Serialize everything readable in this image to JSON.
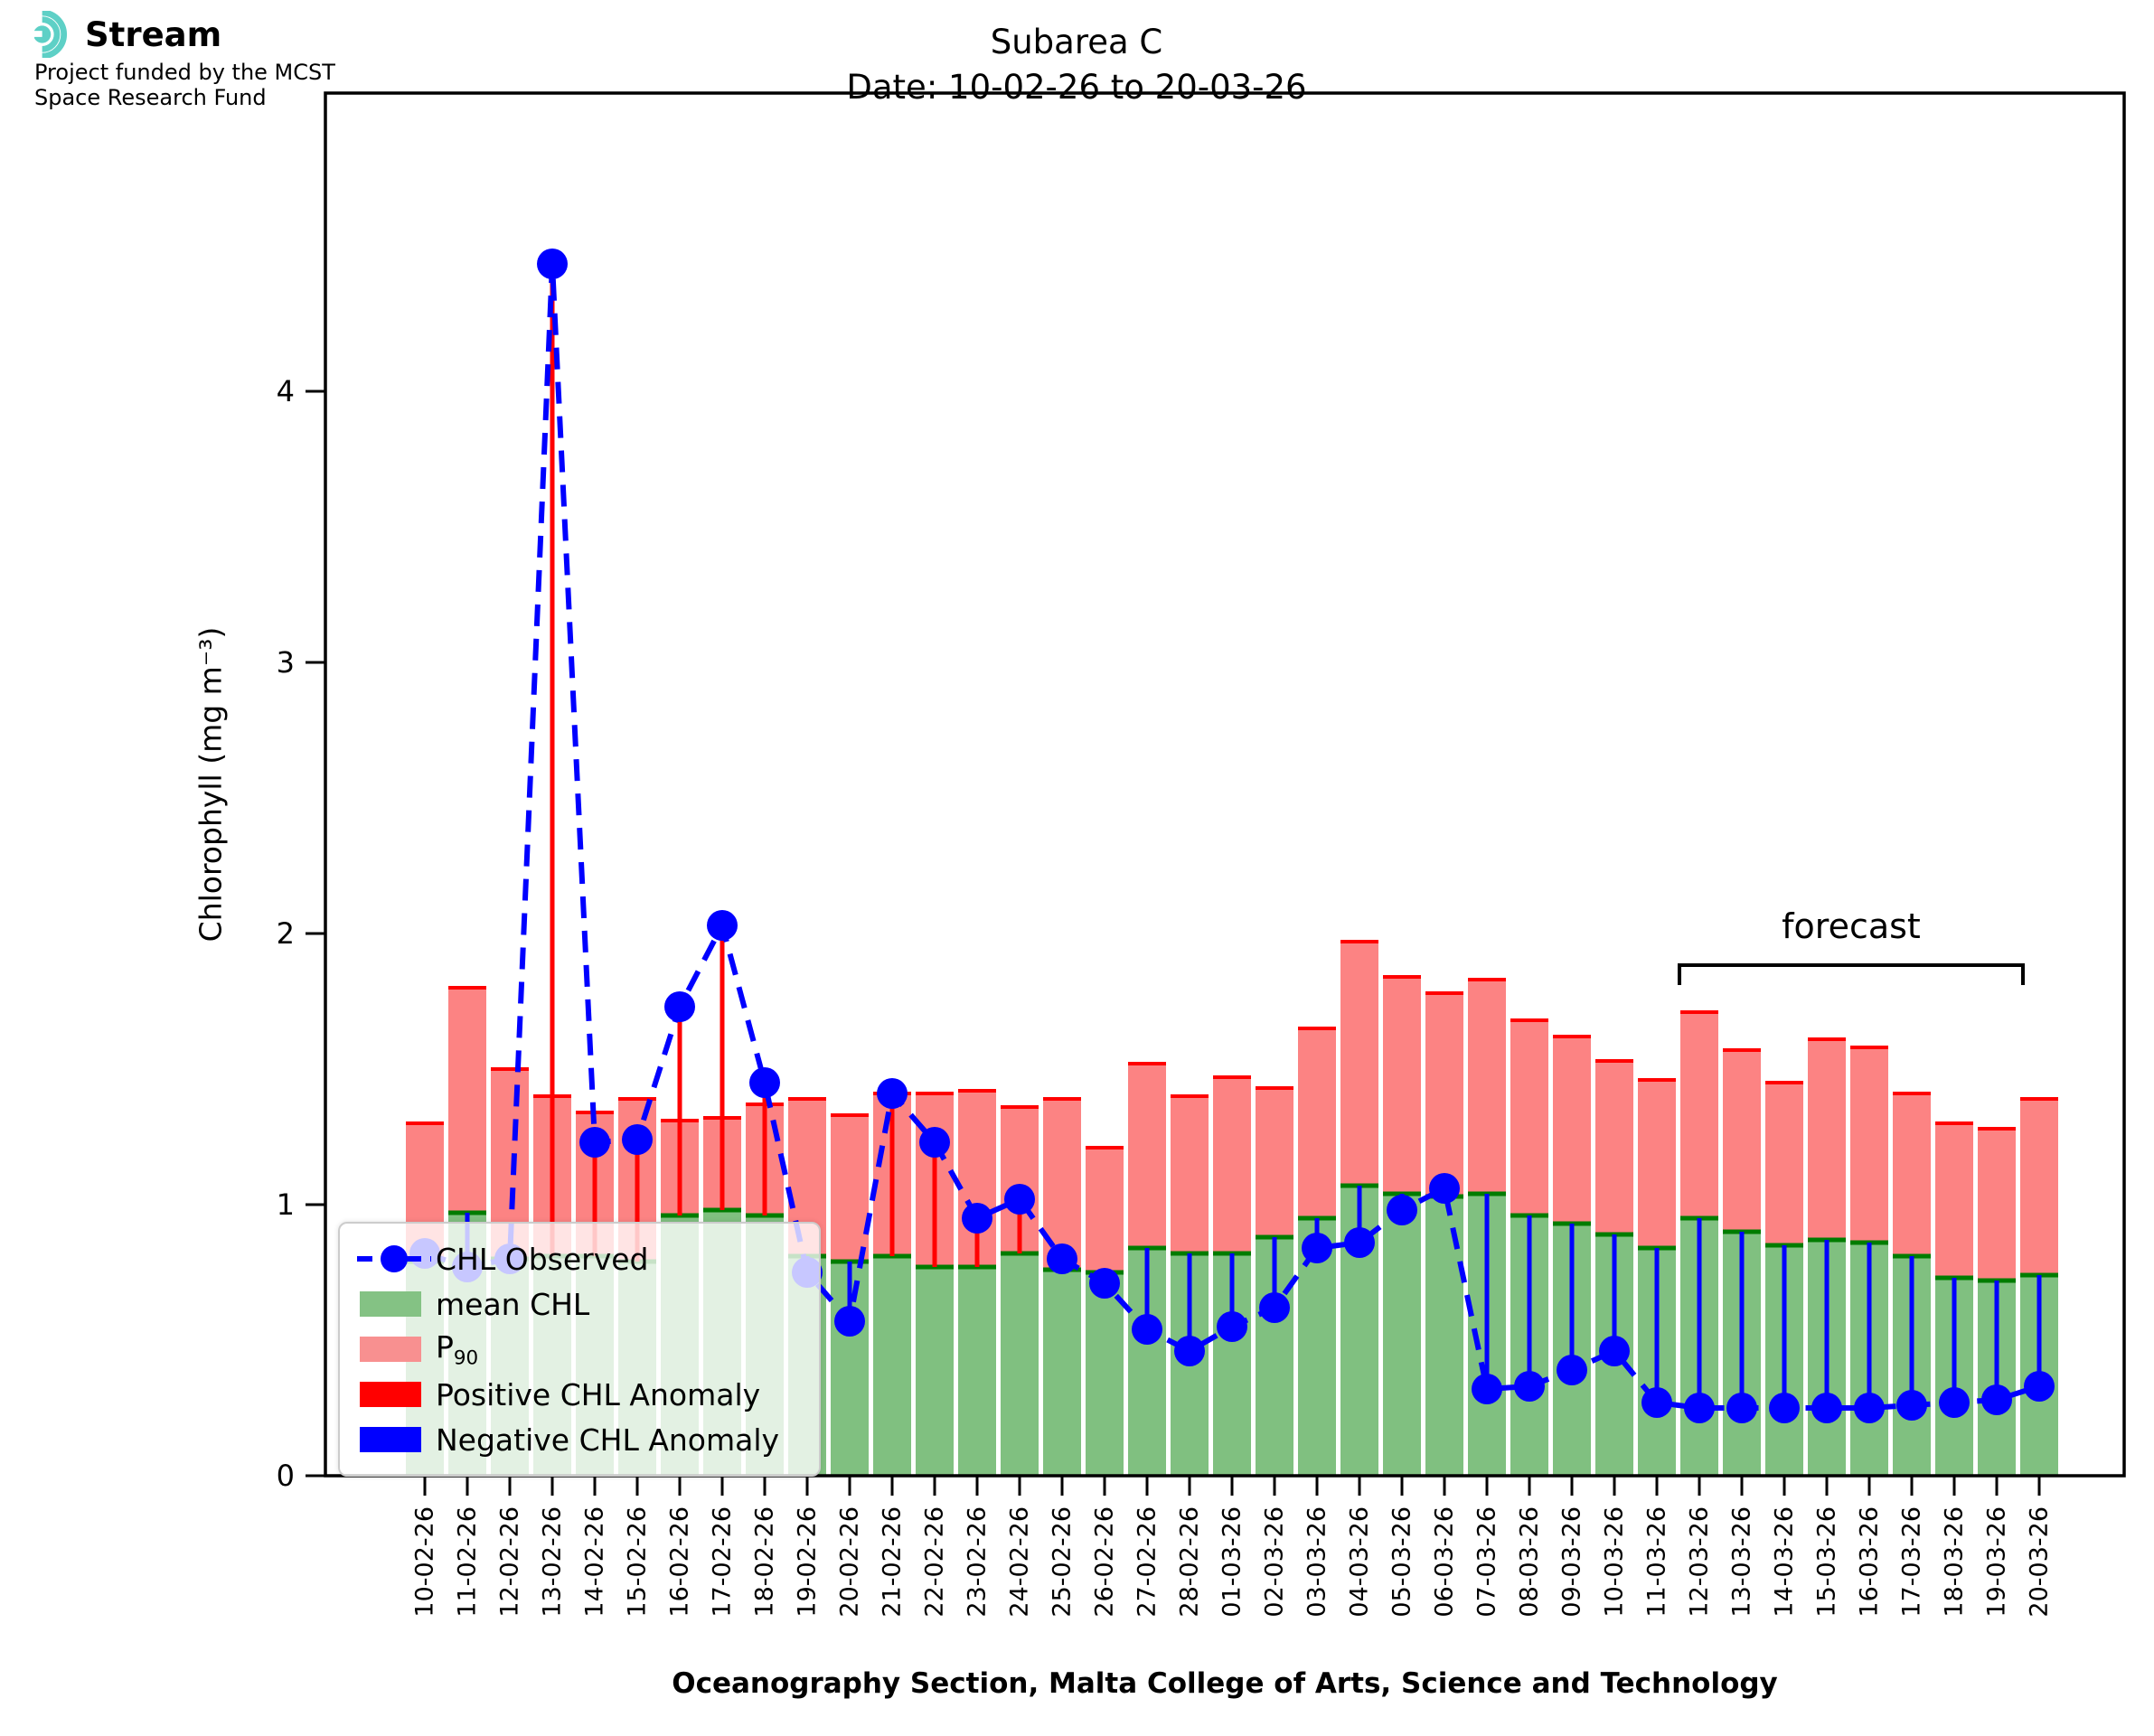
{
  "logo": {
    "brand": "Stream",
    "line1": "Project funded by the MCST",
    "line2": "Space Research Fund",
    "accent_color": "#5ed0c6"
  },
  "title": {
    "line1": "Subarea C",
    "line2": "Date: 10-02-26 to 20-03-26"
  },
  "axes": {
    "y_label": "Chlorophyll (mg m⁻³)",
    "x_caption": "Oceanography Section, Malta College of Arts, Science and Technology",
    "y_ticks": [
      0,
      1,
      2,
      3,
      4
    ],
    "y_max": 5.1
  },
  "legend": {
    "items": [
      {
        "label": "CHL Observed",
        "type": "line",
        "color": "#0000ff"
      },
      {
        "label": "mean CHL",
        "type": "patch",
        "color": "#84c284"
      },
      {
        "label": "P",
        "sub": "90",
        "type": "patch",
        "color": "#f89090"
      },
      {
        "label": "Positive CHL Anomaly",
        "type": "patch",
        "color": "#ff0000"
      },
      {
        "label": "Negative CHL Anomaly",
        "type": "patch",
        "color": "#0000ff"
      }
    ]
  },
  "annotations": {
    "forecast_label": "forecast",
    "forecast_from": "12-03-26",
    "forecast_to": "20-03-26"
  },
  "chart_data": {
    "type": "bar",
    "title": "Subarea C\nDate: 10-02-26 to 20-03-26",
    "xlabel": "Oceanography Section, Malta College of Arts, Science and Technology",
    "ylabel": "Chlorophyll (mg m⁻³)",
    "ylim": [
      0,
      5.1
    ],
    "yticks": [
      0,
      1,
      2,
      3,
      4
    ],
    "grid": false,
    "legend_position": "lower left",
    "categories": [
      "10-02-26",
      "11-02-26",
      "12-02-26",
      "13-02-26",
      "14-02-26",
      "15-02-26",
      "16-02-26",
      "17-02-26",
      "18-02-26",
      "19-02-26",
      "20-02-26",
      "21-02-26",
      "22-02-26",
      "23-02-26",
      "24-02-26",
      "25-02-26",
      "26-02-26",
      "27-02-26",
      "28-02-26",
      "01-03-26",
      "02-03-26",
      "03-03-26",
      "04-03-26",
      "05-03-26",
      "06-03-26",
      "07-03-26",
      "08-03-26",
      "09-03-26",
      "10-03-26",
      "11-03-26",
      "12-03-26",
      "13-03-26",
      "14-03-26",
      "15-03-26",
      "16-03-26",
      "17-03-26",
      "18-03-26",
      "19-03-26",
      "20-03-26"
    ],
    "series": [
      {
        "name": "CHL Observed",
        "type": "line",
        "color": "#0000ff",
        "values": [
          0.82,
          0.77,
          0.8,
          4.47,
          1.23,
          1.24,
          1.73,
          2.03,
          1.45,
          0.75,
          0.57,
          1.41,
          1.23,
          0.95,
          1.02,
          0.8,
          0.71,
          0.54,
          0.46,
          0.55,
          0.62,
          0.84,
          0.86,
          0.98,
          1.06,
          0.32,
          0.33,
          0.39,
          0.46,
          0.27,
          0.25,
          0.25,
          0.25,
          0.25,
          0.25,
          0.26,
          0.27,
          0.28,
          0.33
        ]
      },
      {
        "name": "mean CHL",
        "type": "bar",
        "color": "#80c080",
        "edge_color": "#007c00",
        "values": [
          0.79,
          0.97,
          0.8,
          0.81,
          0.81,
          0.79,
          0.96,
          0.98,
          0.96,
          0.81,
          0.79,
          0.81,
          0.77,
          0.77,
          0.82,
          0.76,
          0.75,
          0.84,
          0.82,
          0.82,
          0.88,
          0.95,
          1.07,
          1.04,
          1.03,
          1.04,
          0.96,
          0.93,
          0.89,
          0.84,
          0.95,
          0.9,
          0.85,
          0.87,
          0.86,
          0.81,
          0.73,
          0.72,
          0.74
        ]
      },
      {
        "name": "P90",
        "type": "bar",
        "color": "#fc8383",
        "edge_color": "#ff0000",
        "values": [
          1.3,
          1.8,
          1.5,
          1.4,
          1.34,
          1.39,
          1.31,
          1.32,
          1.37,
          1.39,
          1.33,
          1.41,
          1.41,
          1.42,
          1.36,
          1.39,
          1.21,
          1.52,
          1.4,
          1.47,
          1.43,
          1.65,
          1.97,
          1.84,
          1.78,
          1.83,
          1.68,
          1.62,
          1.53,
          1.46,
          1.71,
          1.57,
          1.45,
          1.61,
          1.58,
          1.41,
          1.3,
          1.28,
          1.39
        ]
      },
      {
        "name": "Positive CHL Anomaly",
        "type": "stem",
        "color": "#ff0000"
      },
      {
        "name": "Negative CHL Anomaly",
        "type": "stem",
        "color": "#0000ff"
      }
    ],
    "forecast_bracket": {
      "label": "forecast",
      "from_index": 30,
      "to_index": 38
    }
  }
}
